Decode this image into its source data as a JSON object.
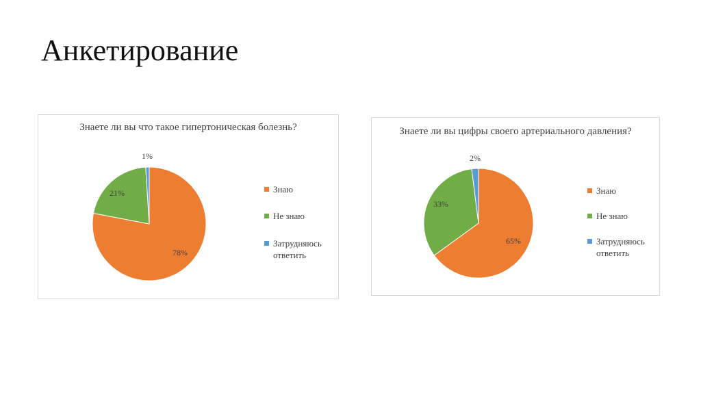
{
  "slide": {
    "title": "Анкетирование"
  },
  "colors": {
    "know": "#ed7d31",
    "dont_know": "#70ad47",
    "unsure": "#5b9bd5"
  },
  "chart_data": [
    {
      "type": "pie",
      "title": "Знаете ли вы что такое гипертоническая болезнь?",
      "categories": [
        "Знаю",
        "Не знаю",
        "Затрудняюсь ответить"
      ],
      "values": [
        78,
        21,
        1
      ],
      "value_labels": [
        "78%",
        "21%",
        "1%"
      ],
      "legend_labels": [
        "Знаю",
        "Не знаю",
        "Затрудняюсь\nответить"
      ],
      "legend": "right"
    },
    {
      "type": "pie",
      "title": "Знаете ли вы цифры своего артериального давления?",
      "categories": [
        "Знаю",
        "Не знаю",
        "Затрудняюсь ответить"
      ],
      "values": [
        65,
        33,
        2
      ],
      "value_labels": [
        "65%",
        "33%",
        "2%"
      ],
      "legend_labels": [
        "Знаю",
        "Не знаю",
        "Затрудняюсь\nответить"
      ],
      "legend": "right"
    }
  ]
}
